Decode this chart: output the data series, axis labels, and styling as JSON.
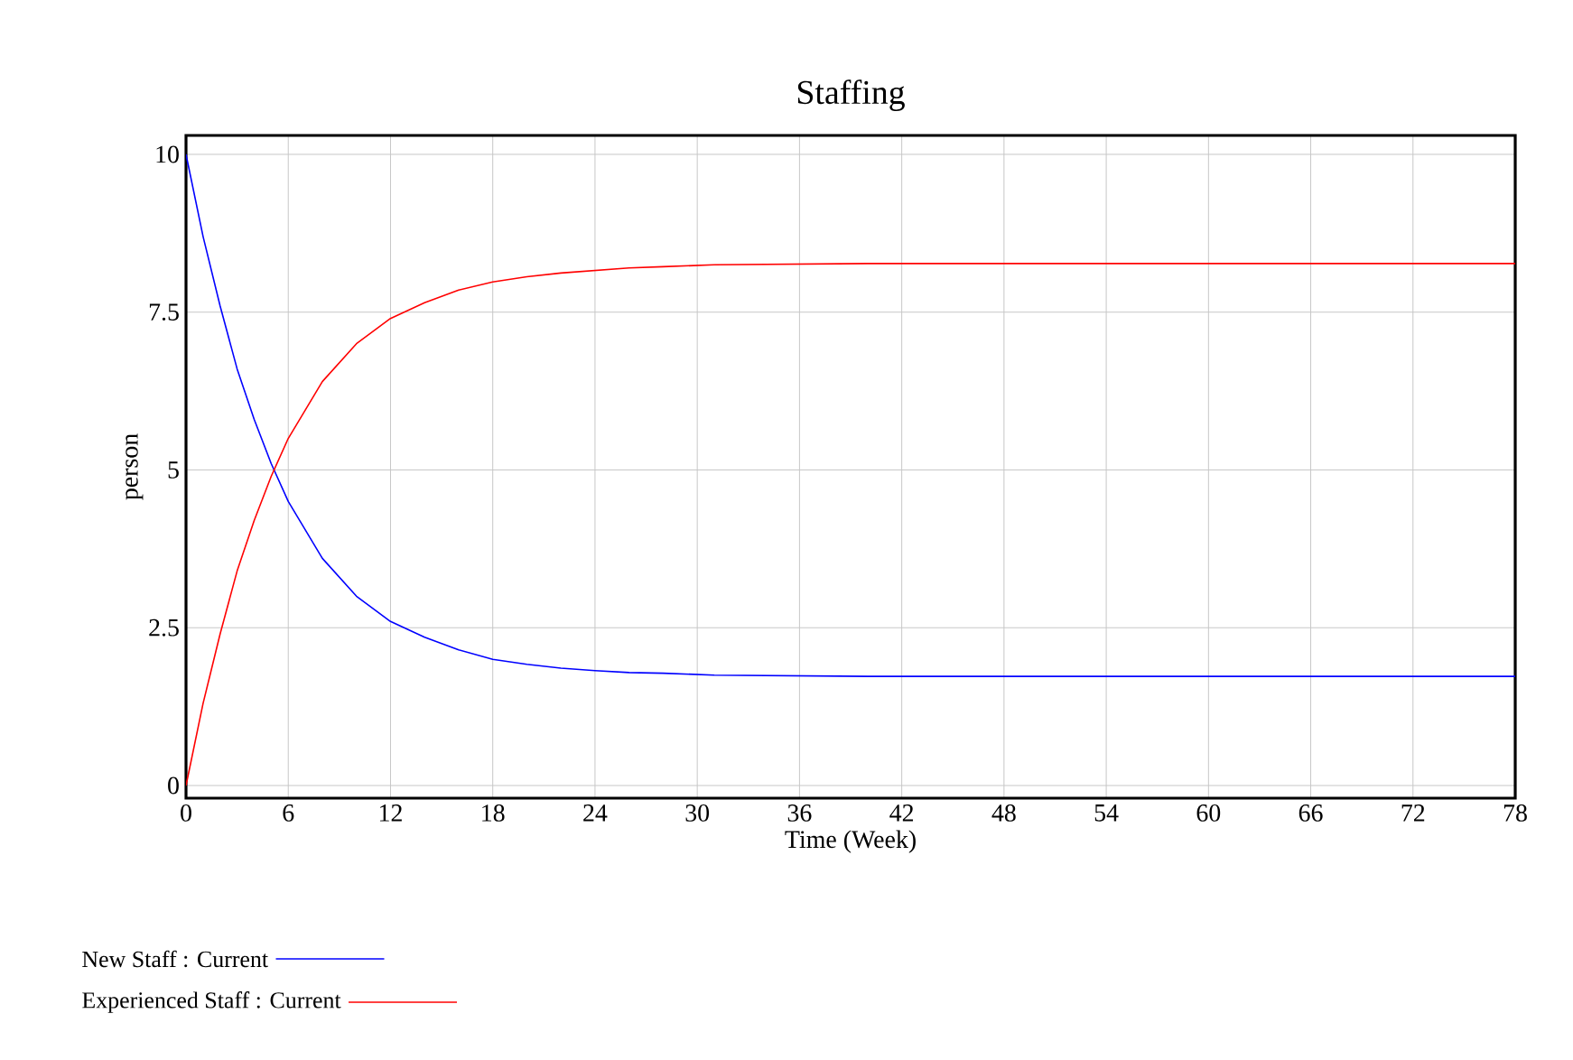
{
  "chart_data": {
    "type": "line",
    "title": "Staffing",
    "xlabel": "Time (Week)",
    "ylabel": "person",
    "xlim": [
      0,
      78
    ],
    "ylim": [
      -0.2,
      10.3
    ],
    "xticks": [
      0,
      6,
      12,
      18,
      24,
      30,
      36,
      42,
      48,
      54,
      60,
      66,
      72,
      78
    ],
    "yticks": [
      0,
      2.5,
      5,
      7.5,
      10
    ],
    "x": [
      0,
      1,
      2,
      3,
      4,
      5,
      6,
      8,
      10,
      12,
      14,
      16,
      18,
      20,
      22,
      24,
      26,
      28,
      31,
      40,
      78
    ],
    "series": [
      {
        "name": "New Staff : Current",
        "color": "#0000ff",
        "values": [
          10,
          8.7,
          7.6,
          6.6,
          5.8,
          5.1,
          4.5,
          3.6,
          3.0,
          2.6,
          2.35,
          2.15,
          2.0,
          1.92,
          1.86,
          1.82,
          1.79,
          1.78,
          1.75,
          1.73,
          1.73
        ]
      },
      {
        "name": "Experienced Staff : Current",
        "color": "#ff0000",
        "values": [
          0,
          1.3,
          2.4,
          3.4,
          4.2,
          4.9,
          5.5,
          6.4,
          7.0,
          7.4,
          7.65,
          7.85,
          7.98,
          8.06,
          8.12,
          8.16,
          8.2,
          8.22,
          8.25,
          8.27,
          8.27
        ]
      }
    ],
    "grid": true,
    "legend": "bottom",
    "marker": "none",
    "line_style": "solid"
  }
}
